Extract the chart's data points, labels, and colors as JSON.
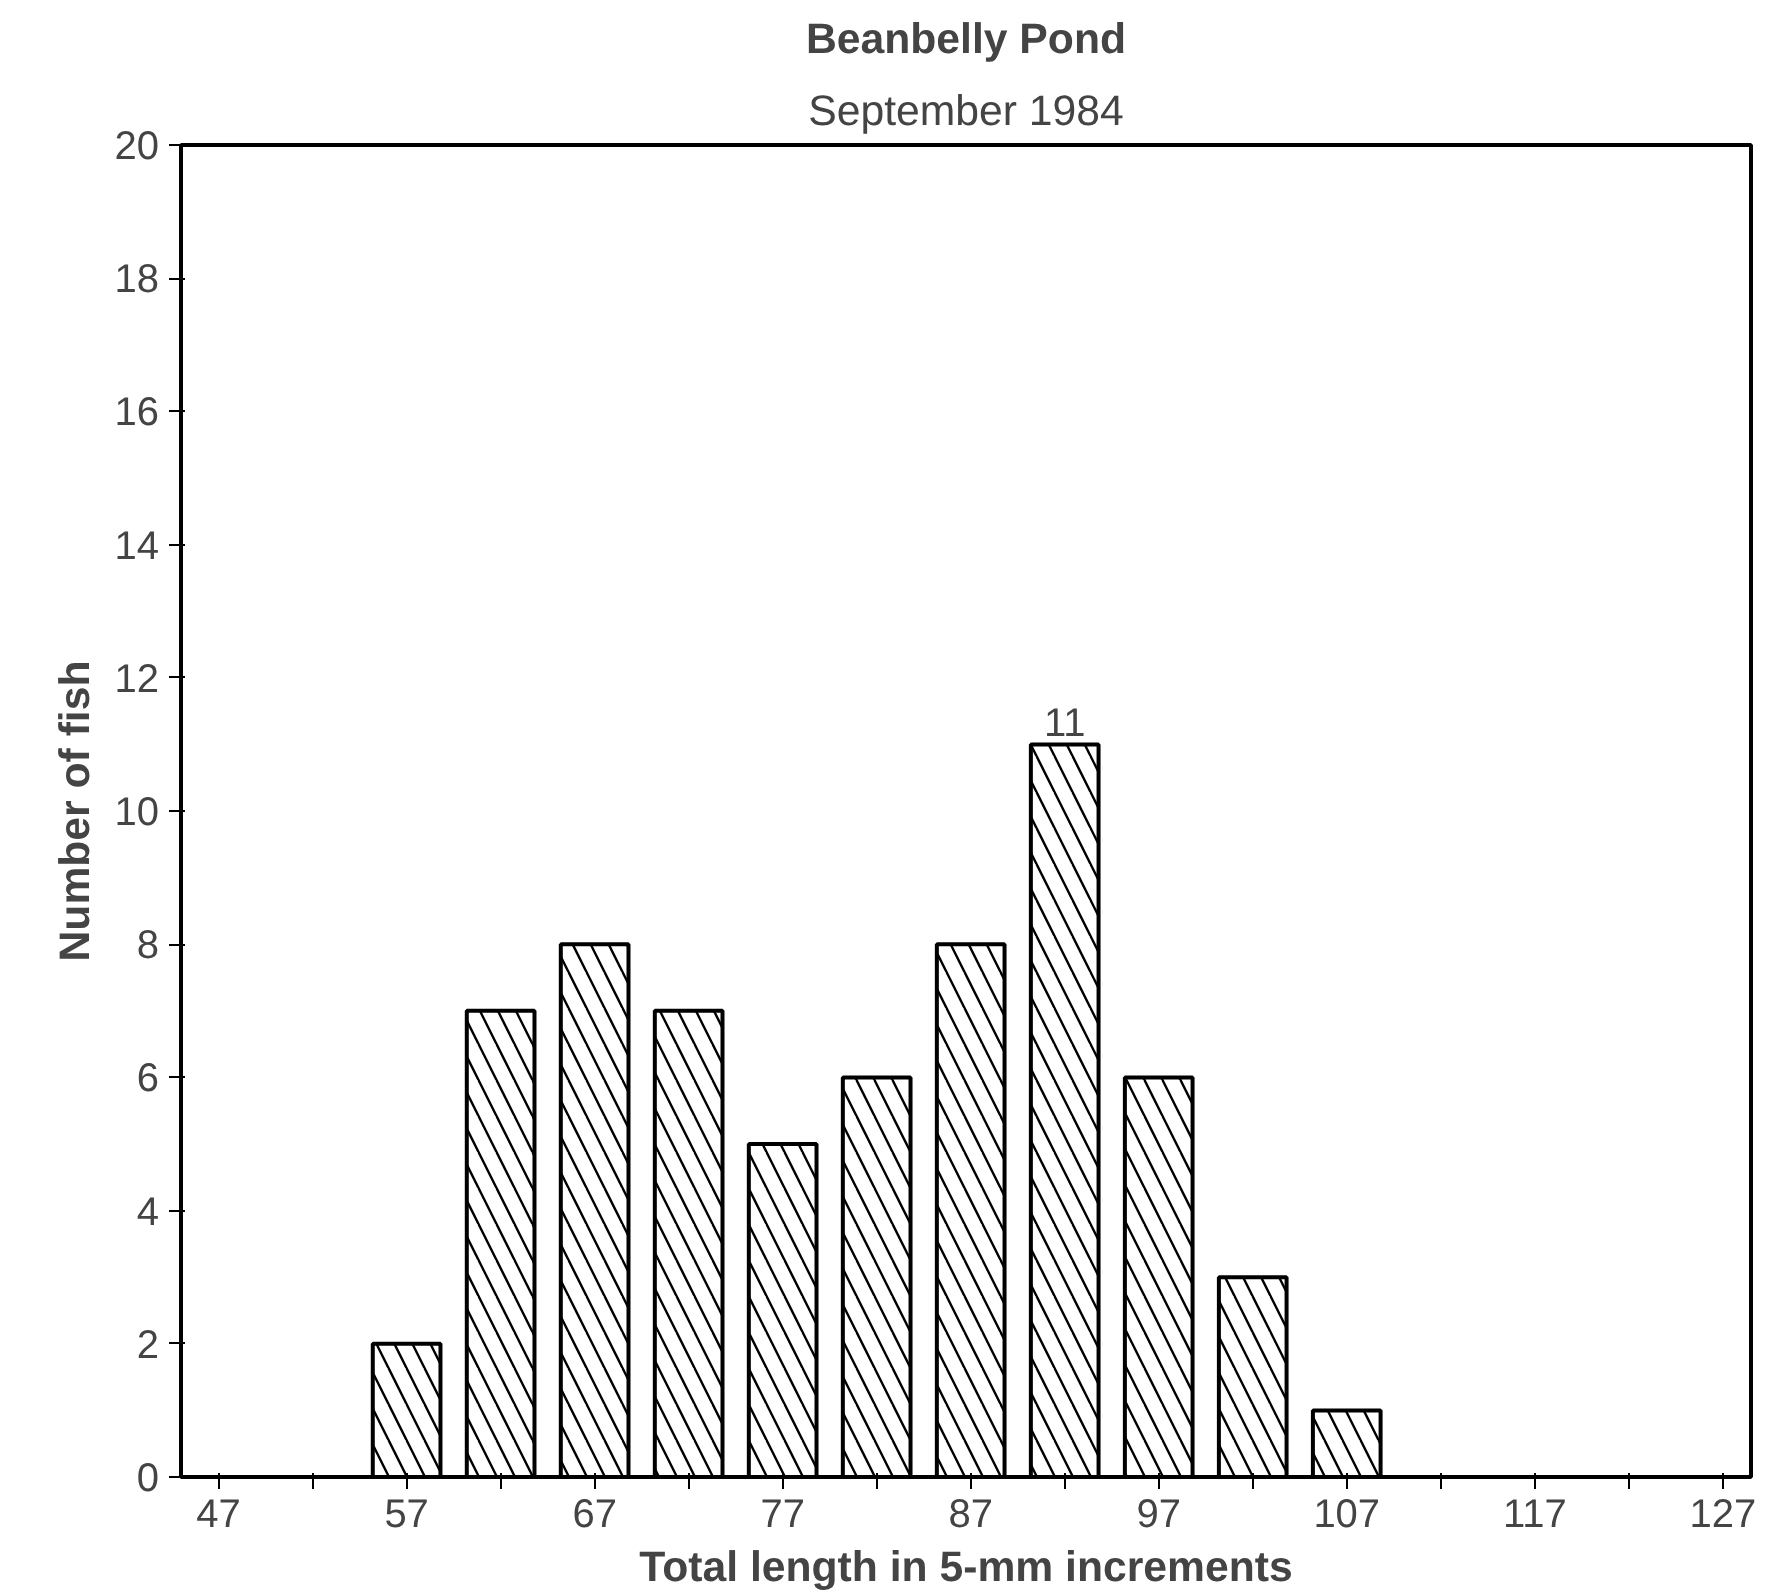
{
  "chart_data": {
    "type": "bar",
    "title": "Beanbelly Pond",
    "subtitle": "September 1984",
    "xlabel": "Total length in 5-mm increments",
    "ylabel": "Number of fish",
    "x": [
      57,
      62,
      67,
      72,
      77,
      82,
      87,
      92,
      97,
      102,
      107
    ],
    "values": [
      2,
      7,
      8,
      7,
      5,
      6,
      8,
      11,
      6,
      3,
      1
    ],
    "value_labels": [
      null,
      null,
      null,
      null,
      null,
      null,
      null,
      "11",
      null,
      null,
      null
    ],
    "color": "#ffffff",
    "xlim": [
      45,
      128.5
    ],
    "ylim": [
      0,
      20
    ],
    "xticks": [
      47,
      {
        "value": 52,
        "label": null
      },
      57,
      {
        "value": 62,
        "label": null
      },
      67,
      {
        "value": 72,
        "label": null
      },
      77,
      {
        "value": 82,
        "label": null
      },
      87,
      {
        "value": 92,
        "label": null
      },
      97,
      {
        "value": 102,
        "label": null
      },
      107,
      {
        "value": 112,
        "label": null
      },
      117,
      {
        "value": 122,
        "label": null
      },
      127
    ],
    "yticks": [
      0,
      2,
      4,
      6,
      8,
      10,
      12,
      14,
      16,
      18,
      20
    ],
    "grid": false
  }
}
